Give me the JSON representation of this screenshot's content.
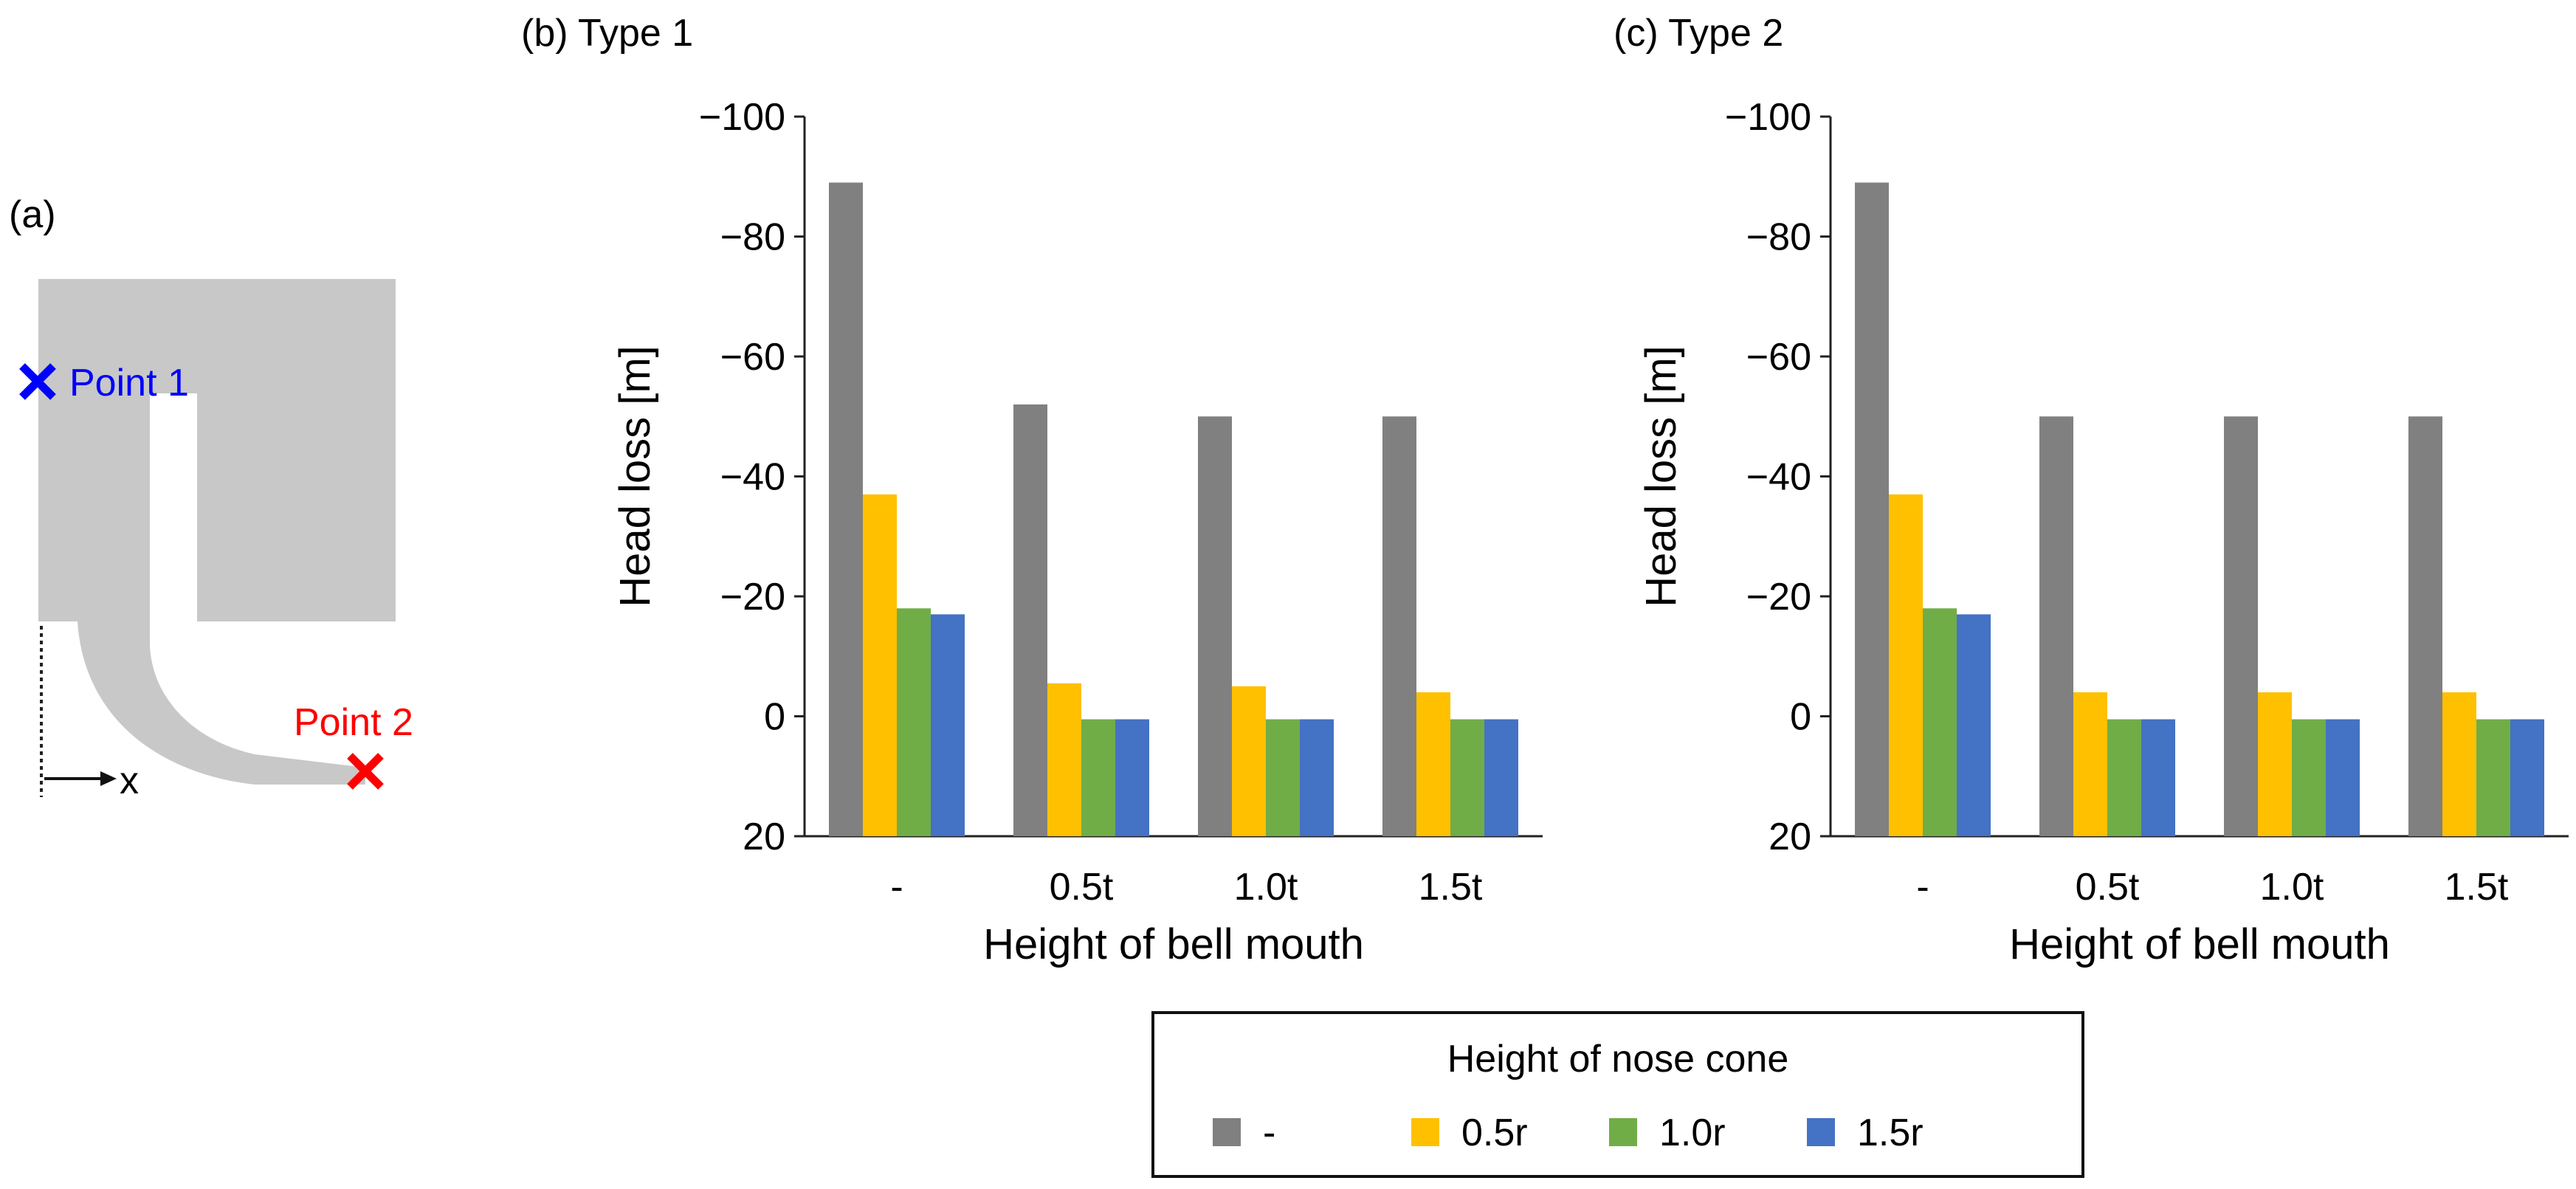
{
  "colors": {
    "series": [
      "#808080",
      "#ffc000",
      "#70ad47",
      "#4472c4"
    ],
    "channel": "#c8c8c8",
    "point1": "#0000ff",
    "point2": "#ff0000",
    "axis": "#222222"
  },
  "diagram": {
    "panel_label": "(a)",
    "point1_label": "Point 1",
    "point2_label": "Point 2",
    "x_axis_label": "x"
  },
  "chart_data": [
    {
      "type": "bar",
      "panel_label": "(b) Type 1",
      "title": "(b) Type 1",
      "xlabel": "Height of bell mouth",
      "ylabel": "Head loss [m]",
      "ylim": [
        20,
        -100
      ],
      "y_reversed": true,
      "yticks": [
        -100,
        -80,
        -60,
        -40,
        -20,
        0,
        20
      ],
      "ytick_labels": [
        "−100",
        "−80",
        "−60",
        "−40",
        "−20",
        "0",
        "20"
      ],
      "grid": false,
      "categories": [
        "-",
        "0.5t",
        "1.0t",
        "1.5t"
      ],
      "series": [
        {
          "name": "-",
          "values": [
            -89,
            -52,
            -50,
            -50
          ]
        },
        {
          "name": "0.5r",
          "values": [
            -37,
            -5.5,
            -5,
            -4
          ]
        },
        {
          "name": "1.0r",
          "values": [
            -18,
            0.5,
            0.5,
            0.5
          ]
        },
        {
          "name": "1.5r",
          "values": [
            -17,
            0.5,
            0.5,
            0.5
          ]
        }
      ]
    },
    {
      "type": "bar",
      "panel_label": "(c) Type 2",
      "title": "(c) Type 2",
      "xlabel": "Height of bell mouth",
      "ylabel": "Head loss [m]",
      "ylim": [
        20,
        -100
      ],
      "y_reversed": true,
      "yticks": [
        -100,
        -80,
        -60,
        -40,
        -20,
        0,
        20
      ],
      "ytick_labels": [
        "−100",
        "−80",
        "−60",
        "−40",
        "−20",
        "0",
        "20"
      ],
      "grid": false,
      "categories": [
        "-",
        "0.5t",
        "1.0t",
        "1.5t"
      ],
      "series": [
        {
          "name": "-",
          "values": [
            -89,
            -50,
            -50,
            -50
          ]
        },
        {
          "name": "0.5r",
          "values": [
            -37,
            -4,
            -4,
            -4
          ]
        },
        {
          "name": "1.0r",
          "values": [
            -18,
            0.5,
            0.5,
            0.5
          ]
        },
        {
          "name": "1.5r",
          "values": [
            -17,
            0.5,
            0.5,
            0.5
          ]
        }
      ]
    }
  ],
  "legend": {
    "title": "Height of nose cone",
    "entries": [
      "-",
      "0.5r",
      "1.0r",
      "1.5r"
    ],
    "placement": "bottom-right"
  }
}
